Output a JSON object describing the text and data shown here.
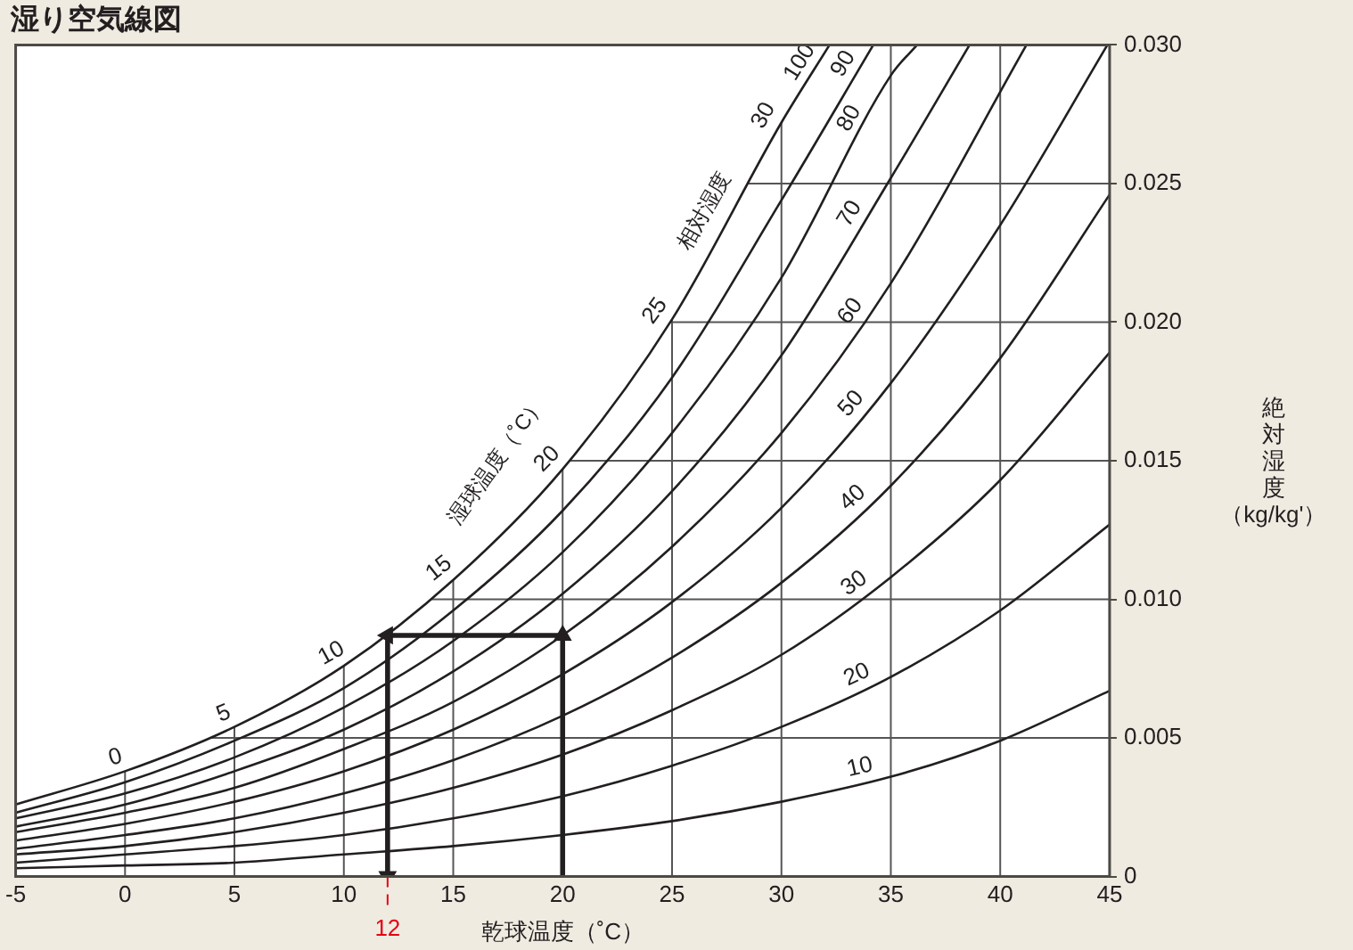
{
  "chart_data": {
    "type": "line",
    "title": "湿り空気線図",
    "xlabel": "乾球温度（˚C）",
    "ylabel": "絶対湿度（kg/kg'）",
    "xlim": [
      -5,
      45
    ],
    "xticks": [
      -5,
      0,
      5,
      10,
      15,
      20,
      25,
      30,
      35,
      40,
      45
    ],
    "ylim": [
      0,
      0.03
    ],
    "yticks": [
      0,
      0.005,
      {
        "value": 0.01,
        "label": "0.010"
      },
      0.015,
      {
        "value": 0.02,
        "label": "0.020"
      },
      0.025,
      {
        "value": 0.03,
        "label": "0.030"
      }
    ],
    "grid": true,
    "legend": false,
    "marker": "none",
    "line_style": "solid",
    "series": [
      {
        "name": "10",
        "color": "#231f20",
        "x": [
          -5,
          0,
          5,
          10,
          15,
          20,
          25,
          30,
          35,
          40,
          45
        ],
        "values": [
          0.0003,
          0.0004,
          0.0005,
          0.0008,
          0.0011,
          0.0015,
          0.002,
          0.0027,
          0.0036,
          0.0049,
          0.0067
        ]
      },
      {
        "name": "20",
        "color": "#231f20",
        "x": [
          -5,
          0,
          5,
          10,
          15,
          20,
          25,
          30,
          35,
          40,
          45
        ],
        "values": [
          0.0005,
          0.0008,
          0.0011,
          0.0015,
          0.0021,
          0.0029,
          0.004,
          0.0054,
          0.0072,
          0.0096,
          0.0127
        ]
      },
      {
        "name": "30",
        "color": "#231f20",
        "x": [
          -5,
          0,
          5,
          10,
          15,
          20,
          25,
          30,
          35,
          40,
          45
        ],
        "values": [
          0.0008,
          0.0011,
          0.0016,
          0.0023,
          0.0032,
          0.0044,
          0.006,
          0.008,
          0.0108,
          0.0143,
          0.0189
        ]
      },
      {
        "name": "40",
        "color": "#231f20",
        "x": [
          -5,
          0,
          5,
          10,
          15,
          20,
          25,
          30,
          35,
          40,
          45
        ],
        "values": [
          0.001,
          0.0015,
          0.0021,
          0.003,
          0.0042,
          0.0058,
          0.0079,
          0.0106,
          0.0141,
          0.0187,
          0.0246
        ]
      },
      {
        "name": "50",
        "color": "#231f20",
        "x": [
          -5,
          0,
          5,
          10,
          15,
          20,
          25,
          30,
          35,
          40,
          44.9
        ],
        "values": [
          0.0013,
          0.0019,
          0.0027,
          0.0038,
          0.0053,
          0.0073,
          0.0099,
          0.0133,
          0.0178,
          0.0235,
          0.03
        ]
      },
      {
        "name": "60",
        "color": "#231f20",
        "x": [
          -5,
          0,
          5,
          10,
          15,
          20,
          25,
          30,
          35,
          41.2
        ],
        "values": [
          0.0016,
          0.0023,
          0.0032,
          0.0046,
          0.0063,
          0.0087,
          0.0119,
          0.016,
          0.0214,
          0.03
        ]
      },
      {
        "name": "70",
        "color": "#231f20",
        "x": [
          -5,
          0,
          5,
          10,
          15,
          20,
          25,
          30,
          35,
          38.6
        ],
        "values": [
          0.0018,
          0.0026,
          0.0038,
          0.0053,
          0.0074,
          0.0102,
          0.0139,
          0.0188,
          0.0252,
          0.03
        ]
      },
      {
        "name": "80",
        "color": "#231f20",
        "x": [
          -5,
          0,
          5,
          10,
          15,
          20,
          25,
          30,
          35,
          36.2
        ],
        "values": [
          0.0021,
          0.003,
          0.0043,
          0.0061,
          0.0085,
          0.0117,
          0.016,
          0.0216,
          0.0289,
          0.03
        ]
      },
      {
        "name": "90",
        "color": "#231f20",
        "x": [
          -5,
          0,
          5,
          10,
          15,
          20,
          25,
          30,
          34.2
        ],
        "values": [
          0.0023,
          0.0034,
          0.0049,
          0.0068,
          0.0096,
          0.0132,
          0.018,
          0.0244,
          0.03
        ]
      },
      {
        "name": "100",
        "color": "#231f20",
        "x": [
          -5,
          0,
          5,
          10,
          15,
          20,
          25,
          30,
          32.2
        ],
        "values": [
          0.0026,
          0.0038,
          0.0054,
          0.0076,
          0.0107,
          0.0147,
          0.0201,
          0.0272,
          0.03
        ]
      },
      {
        "type": "line",
        "color": "#231f20",
        "marker": "triangle",
        "x": [
          20,
          20,
          12,
          12
        ],
        "values": [
          0,
          0.0087,
          0.0087,
          0
        ]
      }
    ],
    "ref_lines": [
      {
        "axis": "x",
        "value": 12,
        "label": "12",
        "color": "#e60012",
        "line_style": "dashed"
      }
    ],
    "annotations": [
      "湿球温度（˚C）",
      "相対湿度",
      {
        "text": "0",
        "x": 0,
        "y": 0.0038
      },
      {
        "text": "5",
        "x": 5,
        "y": 0.0054
      },
      {
        "text": "10",
        "x": 10,
        "y": 0.0076
      },
      {
        "text": "15",
        "x": 15,
        "y": 0.0107
      },
      {
        "text": "20",
        "x": 20,
        "y": 0.0147
      },
      {
        "text": "25",
        "x": 25,
        "y": 0.0201
      },
      {
        "text": "30",
        "x": 30,
        "y": 0.0272
      }
    ]
  }
}
